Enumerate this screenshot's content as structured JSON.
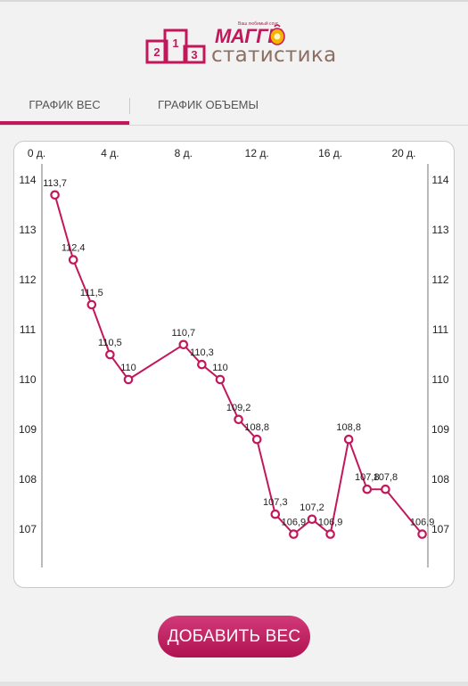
{
  "header": {
    "brand": "МАГГИ",
    "brand_tagline": "Ваш любимый соус",
    "title": "статистика"
  },
  "tabs": [
    {
      "label": "ГРАФИК ВЕС",
      "active": true
    },
    {
      "label": "ГРАФИК ОБЪЕМЫ",
      "active": false
    }
  ],
  "add_button": {
    "label": "ДОБАВИТЬ ВЕС"
  },
  "colors": {
    "accent": "#c2185b",
    "line": "#c2185b",
    "brand_brown": "#8d6e63"
  },
  "chart_data": {
    "type": "line",
    "x_tick_labels": [
      "0 д.",
      "4 д.",
      "8 д.",
      "12 д.",
      "16 д.",
      "20 д."
    ],
    "x_ticks": [
      0,
      4,
      8,
      12,
      16,
      20
    ],
    "y_tick_labels": [
      "114",
      "113",
      "112",
      "111",
      "110",
      "109",
      "108",
      "107"
    ],
    "y_ticks": [
      114,
      113,
      112,
      111,
      110,
      109,
      108,
      107
    ],
    "xlim": [
      0,
      20
    ],
    "ylim": [
      106.3,
      114.3
    ],
    "y_axis_left": true,
    "y_axis_right": true,
    "x_axis_position": "top",
    "grid": false,
    "series": [
      {
        "x": [
          1,
          2,
          3,
          4,
          5,
          8,
          9,
          10,
          11,
          12,
          13,
          14,
          15,
          16,
          17,
          18,
          19,
          21
        ],
        "values": [
          113.7,
          112.4,
          111.5,
          110.5,
          110,
          110.7,
          110.3,
          110,
          109.2,
          108.8,
          107.3,
          106.9,
          107.2,
          106.9,
          108.8,
          107.8,
          107.8,
          106.9
        ],
        "labels": [
          "113,7",
          "112,4",
          "111,5",
          "110,5",
          "110",
          "110,7",
          "110,3",
          "110",
          "109,2",
          "108,8",
          "107,3",
          "106,9",
          "107,2",
          "106,9",
          "108,8",
          "107,8",
          "107,8",
          "106,9"
        ]
      }
    ]
  }
}
